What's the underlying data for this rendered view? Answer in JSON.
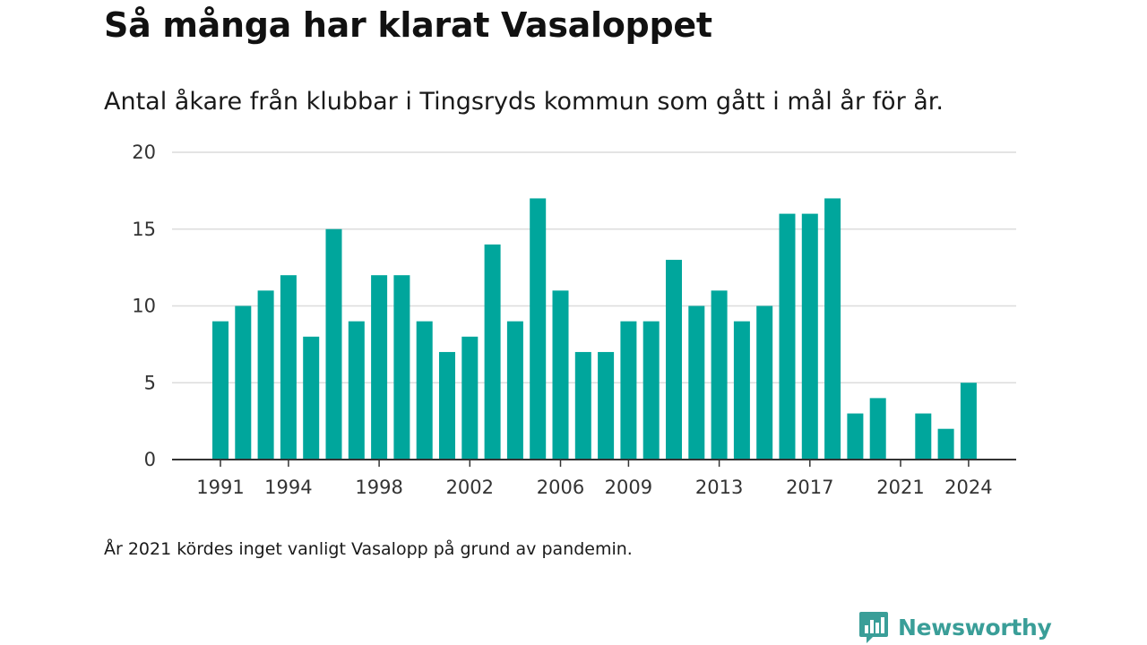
{
  "header": {
    "title": "Så många har klarat Vasaloppet",
    "subtitle": "Antal åkare från klubbar i Tingsryds kommun som gått i mål år för år."
  },
  "footer": {
    "note": "År 2021 kördes inget vanligt Vasalopp på grund av pandemin.",
    "brand": "Newsworthy",
    "brand_icon": "bar-chart-speech-bubble-icon"
  },
  "colors": {
    "bar": "#00a69c",
    "grid": "#dcdcdc",
    "axis": "#333333",
    "brand": "#3a9e98"
  },
  "chart_data": {
    "type": "bar",
    "title": "",
    "xlabel": "",
    "ylabel": "",
    "categories": [
      "1991",
      "1992",
      "1993",
      "1994",
      "1995",
      "1996",
      "1997",
      "1998",
      "1999",
      "2000",
      "2001",
      "2002",
      "2003",
      "2004",
      "2005",
      "2006",
      "2007",
      "2008",
      "2009",
      "2010",
      "2011",
      "2012",
      "2013",
      "2014",
      "2015",
      "2016",
      "2017",
      "2018",
      "2019",
      "2020",
      "2021",
      "2022",
      "2023",
      "2024"
    ],
    "values": [
      9,
      10,
      11,
      12,
      8,
      15,
      9,
      12,
      12,
      9,
      7,
      8,
      14,
      9,
      17,
      11,
      7,
      7,
      9,
      9,
      13,
      10,
      11,
      9,
      10,
      16,
      16,
      17,
      3,
      4,
      0,
      3,
      2,
      5
    ],
    "ylim": [
      0,
      20
    ],
    "yticks": [
      0,
      5,
      10,
      15,
      20
    ],
    "xtick_labels": [
      "1991",
      "1994",
      "1998",
      "2002",
      "2006",
      "2009",
      "2013",
      "2017",
      "2021",
      "2024"
    ],
    "grid": true,
    "legend": "none"
  }
}
